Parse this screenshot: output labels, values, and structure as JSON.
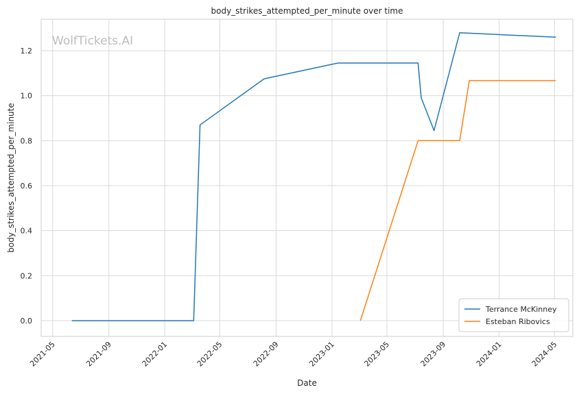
{
  "chart_data": {
    "type": "line",
    "title": "body_strikes_attempted_per_minute over time",
    "xlabel": "Date",
    "ylabel": "body_strikes_attempted_per_minute",
    "watermark": "WolfTickets.AI",
    "xlim": [
      "2021-04-06",
      "2024-06-10"
    ],
    "ylim": [
      -0.07,
      1.34
    ],
    "x_ticks": [
      "2021-05",
      "2021-09",
      "2022-01",
      "2022-05",
      "2022-09",
      "2023-01",
      "2023-05",
      "2023-09",
      "2024-01",
      "2024-05"
    ],
    "y_ticks": [
      "0.0",
      "0.2",
      "0.4",
      "0.6",
      "0.8",
      "1.0",
      "1.2"
    ],
    "grid": true,
    "legend_position": "bottom-right",
    "series": [
      {
        "name": "Terrance McKinney",
        "color": "#1f77b4",
        "points": [
          {
            "x": "2021-06-12",
            "y": 0.0
          },
          {
            "x": "2022-03-05",
            "y": 0.0
          },
          {
            "x": "2022-03-19",
            "y": 0.87
          },
          {
            "x": "2022-08-06",
            "y": 1.075
          },
          {
            "x": "2023-01-14",
            "y": 1.145
          },
          {
            "x": "2023-07-08",
            "y": 1.145
          },
          {
            "x": "2023-07-15",
            "y": 0.99
          },
          {
            "x": "2023-08-12",
            "y": 0.845
          },
          {
            "x": "2023-10-07",
            "y": 1.28
          },
          {
            "x": "2024-05-04",
            "y": 1.26
          }
        ]
      },
      {
        "name": "Esteban Ribovics",
        "color": "#ff7f0e",
        "points": [
          {
            "x": "2023-03-04",
            "y": 0.0
          },
          {
            "x": "2023-07-08",
            "y": 0.8
          },
          {
            "x": "2023-10-07",
            "y": 0.8
          },
          {
            "x": "2023-10-28",
            "y": 1.067
          },
          {
            "x": "2024-05-04",
            "y": 1.067
          }
        ]
      }
    ]
  }
}
